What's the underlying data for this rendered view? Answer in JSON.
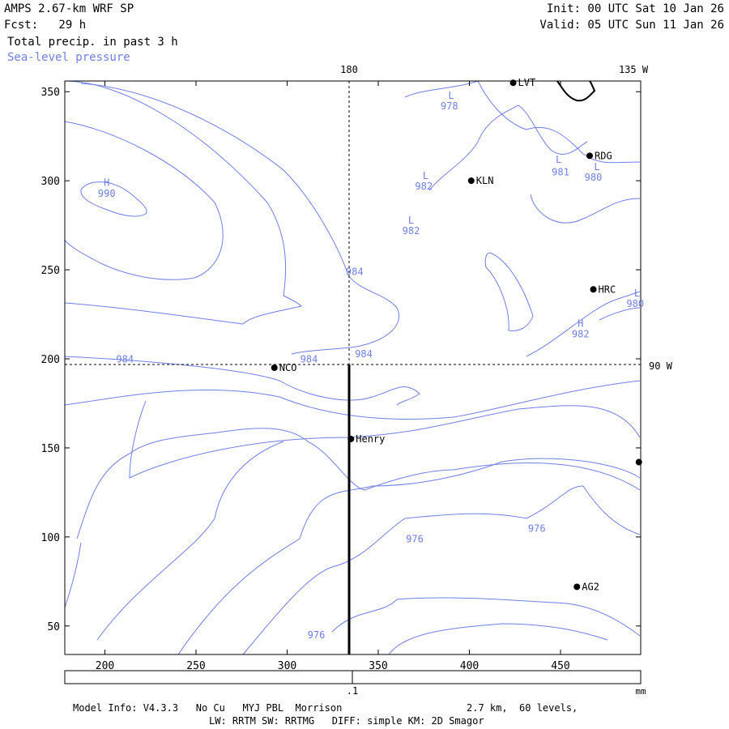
{
  "header": {
    "model": "AMPS 2.67-km WRF SP",
    "forecast": "Fcst:   29 h",
    "field": "Total precip. in past 3 h",
    "overlay": "Sea-level pressure",
    "init": "Init: 00 UTC Sat 10 Jan 26",
    "valid": "Valid: 05 UTC Sun 11 Jan 26"
  },
  "colors": {
    "contour": "#6f7fe6",
    "frame": "#000000",
    "overlay_label": "#6f7fe6"
  },
  "map": {
    "x_ticks": [
      200,
      250,
      300,
      350,
      400,
      450
    ],
    "y_ticks": [
      50,
      100,
      150,
      200,
      250,
      300,
      350
    ],
    "x_range": [
      178,
      494
    ],
    "y_range": [
      34,
      356
    ],
    "longitude_labels": [
      {
        "text": "180",
        "x": 334
      },
      {
        "text": "135 W",
        "x": 490
      }
    ],
    "latitude_labels": [
      {
        "text": "90 W",
        "y": 196
      }
    ],
    "stations": [
      {
        "name": "LVT",
        "x": 424,
        "y": 355
      },
      {
        "name": "RDG",
        "x": 466,
        "y": 314
      },
      {
        "name": "KLN",
        "x": 401,
        "y": 300
      },
      {
        "name": "HRC",
        "x": 468,
        "y": 239
      },
      {
        "name": "NCO",
        "x": 293,
        "y": 195
      },
      {
        "name": "Henry",
        "x": 335,
        "y": 155
      },
      {
        "name": "AG2",
        "x": 459,
        "y": 72
      },
      {
        "name": "",
        "x": 493,
        "y": 142
      }
    ],
    "pressure_labels": [
      {
        "text": "990",
        "x": 201,
        "y": 291
      },
      {
        "text": "978",
        "x": 389,
        "y": 340
      },
      {
        "text": "981",
        "x": 450,
        "y": 303
      },
      {
        "text": "980",
        "x": 468,
        "y": 300
      },
      {
        "text": "982",
        "x": 375,
        "y": 295
      },
      {
        "text": "982",
        "x": 368,
        "y": 270
      },
      {
        "text": "984",
        "x": 337,
        "y": 247
      },
      {
        "text": "980",
        "x": 491,
        "y": 229
      },
      {
        "text": "982",
        "x": 461,
        "y": 212
      },
      {
        "text": "984",
        "x": 211,
        "y": 198
      },
      {
        "text": "984",
        "x": 312,
        "y": 198
      },
      {
        "text": "984",
        "x": 342,
        "y": 201
      },
      {
        "text": "976",
        "x": 437,
        "y": 103
      },
      {
        "text": "976",
        "x": 370,
        "y": 97
      },
      {
        "text": "976",
        "x": 316,
        "y": 43
      }
    ],
    "center_labels": [
      {
        "text": "H",
        "x": 201,
        "y": 297
      },
      {
        "text": "L",
        "x": 390,
        "y": 346
      },
      {
        "text": "L",
        "x": 449,
        "y": 310
      },
      {
        "text": "L",
        "x": 470,
        "y": 306
      },
      {
        "text": "L",
        "x": 376,
        "y": 301
      },
      {
        "text": "L",
        "x": 368,
        "y": 276
      },
      {
        "text": "L",
        "x": 492,
        "y": 235
      },
      {
        "text": "H",
        "x": 461,
        "y": 218
      }
    ]
  },
  "colorbar": {
    "tick_label": ".1",
    "units": "mm"
  },
  "footer": {
    "line1_left": "Model Info: V4.3.3   No Cu   MYJ PBL  Morrison",
    "line1_right": "2.7 km,  60 levels,",
    "line2": "LW: RRTM SW: RRTMG   DIFF: simple KM: 2D Smagor"
  }
}
